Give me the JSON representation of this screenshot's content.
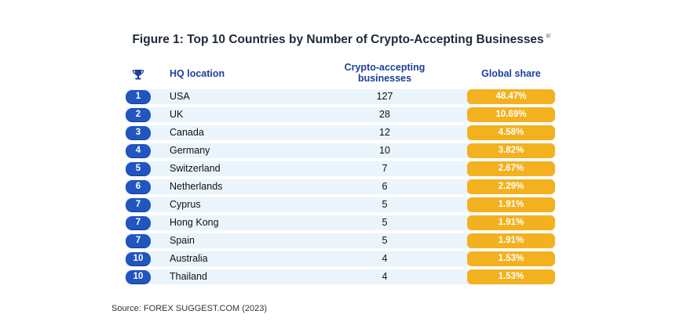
{
  "title": "Figure 1: Top 10 Countries by Number of Crypto-Accepting Businesses",
  "title_note": "8/",
  "source": "Source: FOREX SUGGEST.COM (2023)",
  "colors": {
    "rank_badge": "#2155c0",
    "share_pill": "#f3b11f",
    "row_band": "#eaf4fc",
    "header_text": "#1c3f9a"
  },
  "header_icon": "trophy-icon",
  "chart_data": {
    "type": "table",
    "title": "Figure 1: Top 10 Countries by Number of Crypto-Accepting Businesses",
    "columns": [
      "HQ location",
      "Crypto-accepting businesses",
      "Global share"
    ],
    "header": {
      "location": "HQ location",
      "count_line1": "Crypto-accepting",
      "count_line2": "businesses",
      "share": "Global share"
    },
    "rows": [
      {
        "rank": "1",
        "location": "USA",
        "businesses": "127",
        "share": "48.47%"
      },
      {
        "rank": "2",
        "location": "UK",
        "businesses": "28",
        "share": "10.69%"
      },
      {
        "rank": "3",
        "location": "Canada",
        "businesses": "12",
        "share": "4.58%"
      },
      {
        "rank": "4",
        "location": "Germany",
        "businesses": "10",
        "share": "3.82%"
      },
      {
        "rank": "5",
        "location": "Switzerland",
        "businesses": "7",
        "share": "2.67%"
      },
      {
        "rank": "6",
        "location": "Netherlands",
        "businesses": "6",
        "share": "2.29%"
      },
      {
        "rank": "7",
        "location": "Cyprus",
        "businesses": "5",
        "share": "1.91%"
      },
      {
        "rank": "7",
        "location": "Hong Kong",
        "businesses": "5",
        "share": "1.91%"
      },
      {
        "rank": "7",
        "location": "Spain",
        "businesses": "5",
        "share": "1.91%"
      },
      {
        "rank": "10",
        "location": "Australia",
        "businesses": "4",
        "share": "1.53%"
      },
      {
        "rank": "10",
        "location": "Thailand",
        "businesses": "4",
        "share": "1.53%"
      }
    ]
  }
}
